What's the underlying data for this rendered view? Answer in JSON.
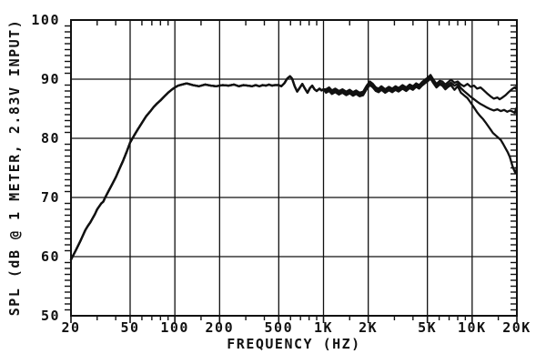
{
  "chart_data": {
    "type": "line",
    "title": "",
    "xlabel": "FREQUENCY (HZ)",
    "ylabel": "SPL (dB @ 1 METER, 2.83V INPUT)",
    "x_scale": "log",
    "x_range_hz": [
      20,
      20000
    ],
    "y_range_db": [
      50,
      100
    ],
    "grid": "major gridlines on both axes, full box frame",
    "legend": "none",
    "background_color": "#ffffff",
    "ink_color": "#111111",
    "x_major_ticks": [
      {
        "hz": 20,
        "label": "20"
      },
      {
        "hz": 50,
        "label": "50"
      },
      {
        "hz": 100,
        "label": "100"
      },
      {
        "hz": 200,
        "label": "200"
      },
      {
        "hz": 500,
        "label": "500"
      },
      {
        "hz": 1000,
        "label": "1K"
      },
      {
        "hz": 2000,
        "label": "2K"
      },
      {
        "hz": 5000,
        "label": "5K"
      },
      {
        "hz": 10000,
        "label": "10K"
      },
      {
        "hz": 20000,
        "label": "20K"
      }
    ],
    "x_minor_ticks_hz": [
      30,
      40,
      60,
      70,
      80,
      90,
      150,
      300,
      400,
      600,
      700,
      800,
      900,
      1500,
      3000,
      4000,
      6000,
      7000,
      8000,
      9000,
      15000
    ],
    "y_major_ticks": [
      {
        "db": 50,
        "label": "50"
      },
      {
        "db": 60,
        "label": "60"
      },
      {
        "db": 70,
        "label": "70"
      },
      {
        "db": 80,
        "label": "80"
      },
      {
        "db": 90,
        "label": "90"
      },
      {
        "db": 100,
        "label": "100"
      }
    ],
    "y_minor_tick_step_db": 1,
    "common_points_hz_db": [
      [
        20,
        59.5
      ],
      [
        21.5,
        61.0
      ],
      [
        23,
        62.5
      ],
      [
        25,
        64.5
      ],
      [
        26,
        65.2
      ],
      [
        27,
        65.8
      ],
      [
        29,
        67.2
      ],
      [
        30,
        68.0
      ],
      [
        32,
        69.0
      ],
      [
        33,
        69.3
      ],
      [
        34,
        70.0
      ],
      [
        36,
        71.2
      ],
      [
        38,
        72.3
      ],
      [
        40,
        73.4
      ],
      [
        42.5,
        74.9
      ],
      [
        45,
        76.3
      ],
      [
        47.5,
        77.8
      ],
      [
        50,
        79.3
      ],
      [
        53,
        80.4
      ],
      [
        56,
        81.4
      ],
      [
        60,
        82.6
      ],
      [
        64,
        83.7
      ],
      [
        68,
        84.5
      ],
      [
        72,
        85.3
      ],
      [
        76,
        85.9
      ],
      [
        80,
        86.4
      ],
      [
        85,
        87.1
      ],
      [
        90,
        87.7
      ],
      [
        95,
        88.2
      ],
      [
        100,
        88.6
      ],
      [
        105,
        88.9
      ],
      [
        112,
        89.1
      ],
      [
        120,
        89.3
      ],
      [
        132,
        89.0
      ],
      [
        145,
        88.8
      ],
      [
        160,
        89.1
      ],
      [
        175,
        88.9
      ],
      [
        190,
        88.8
      ],
      [
        210,
        89.0
      ],
      [
        230,
        88.9
      ],
      [
        250,
        89.1
      ],
      [
        270,
        88.8
      ],
      [
        290,
        89.0
      ],
      [
        310,
        88.9
      ],
      [
        330,
        88.8
      ],
      [
        350,
        89.0
      ],
      [
        370,
        88.8
      ],
      [
        390,
        89.0
      ],
      [
        410,
        88.9
      ],
      [
        430,
        89.1
      ],
      [
        450,
        88.9
      ],
      [
        470,
        89.0
      ],
      [
        500,
        89.0
      ],
      [
        520,
        88.8
      ],
      [
        545,
        89.3
      ],
      [
        570,
        90.1
      ],
      [
        595,
        90.5
      ],
      [
        615,
        90.1
      ],
      [
        640,
        88.8
      ],
      [
        665,
        87.9
      ],
      [
        690,
        88.5
      ],
      [
        720,
        89.2
      ],
      [
        750,
        88.4
      ],
      [
        780,
        87.7
      ],
      [
        810,
        88.5
      ],
      [
        840,
        88.9
      ],
      [
        870,
        88.3
      ],
      [
        900,
        88.0
      ],
      [
        940,
        88.4
      ],
      [
        970,
        88.1
      ],
      [
        1000,
        88.3
      ]
    ],
    "mid_points_hz_db": [
      [
        1040,
        88.0
      ],
      [
        1090,
        88.3
      ],
      [
        1140,
        87.8
      ],
      [
        1200,
        88.1
      ],
      [
        1270,
        87.7
      ],
      [
        1340,
        88.0
      ],
      [
        1420,
        87.6
      ],
      [
        1500,
        87.9
      ],
      [
        1580,
        87.5
      ],
      [
        1660,
        87.8
      ],
      [
        1750,
        87.4
      ],
      [
        1850,
        87.6
      ],
      [
        1950,
        88.6
      ],
      [
        2050,
        89.3
      ],
      [
        2150,
        88.9
      ],
      [
        2250,
        88.3
      ],
      [
        2350,
        88.1
      ],
      [
        2450,
        88.5
      ],
      [
        2600,
        88.0
      ],
      [
        2750,
        88.4
      ],
      [
        2900,
        88.1
      ],
      [
        3050,
        88.5
      ],
      [
        3200,
        88.2
      ],
      [
        3400,
        88.7
      ],
      [
        3600,
        88.3
      ],
      [
        3800,
        88.8
      ],
      [
        4000,
        88.5
      ],
      [
        4200,
        89.0
      ],
      [
        4400,
        88.7
      ],
      [
        4600,
        89.2
      ],
      [
        4800,
        89.6
      ],
      [
        5000,
        89.9
      ],
      [
        5250,
        90.4
      ],
      [
        5500,
        89.6
      ],
      [
        5750,
        88.9
      ],
      [
        6060,
        89.4
      ]
    ],
    "series": [
      {
        "name": "trace-top",
        "mid_offset_db": 0.3,
        "tail_points_hz_db": [
          [
            6300,
            89.6
          ],
          [
            6600,
            89.1
          ],
          [
            6900,
            89.5
          ],
          [
            7200,
            89.9
          ],
          [
            7600,
            89.4
          ],
          [
            8000,
            89.6
          ],
          [
            8400,
            89.1
          ],
          [
            8800,
            88.8
          ],
          [
            9300,
            89.2
          ],
          [
            9800,
            88.7
          ],
          [
            10300,
            88.9
          ],
          [
            10800,
            88.4
          ],
          [
            11400,
            88.6
          ],
          [
            12000,
            88.1
          ],
          [
            12600,
            87.6
          ],
          [
            13300,
            87.1
          ],
          [
            14000,
            86.7
          ],
          [
            14800,
            86.9
          ],
          [
            15300,
            86.6
          ],
          [
            16000,
            86.9
          ],
          [
            16800,
            87.3
          ],
          [
            17600,
            87.8
          ],
          [
            18500,
            88.3
          ],
          [
            19300,
            88.6
          ],
          [
            19700,
            88.4
          ],
          [
            20000,
            89.1
          ]
        ]
      },
      {
        "name": "trace-middle",
        "mid_offset_db": 0.0,
        "tail_points_hz_db": [
          [
            6300,
            89.2
          ],
          [
            6600,
            88.7
          ],
          [
            6900,
            89.1
          ],
          [
            7200,
            89.4
          ],
          [
            7600,
            88.9
          ],
          [
            8000,
            89.2
          ],
          [
            8400,
            88.5
          ],
          [
            8800,
            88.0
          ],
          [
            9300,
            87.5
          ],
          [
            9800,
            87.0
          ],
          [
            10300,
            86.6
          ],
          [
            10800,
            86.2
          ],
          [
            11400,
            85.8
          ],
          [
            12000,
            85.5
          ],
          [
            12600,
            85.2
          ],
          [
            13300,
            84.9
          ],
          [
            14000,
            84.7
          ],
          [
            14800,
            84.9
          ],
          [
            15600,
            84.6
          ],
          [
            16400,
            84.8
          ],
          [
            17200,
            84.5
          ],
          [
            18000,
            84.7
          ],
          [
            18800,
            84.5
          ],
          [
            19400,
            84.3
          ],
          [
            19700,
            84.9
          ],
          [
            20000,
            85.2
          ]
        ]
      },
      {
        "name": "trace-bottom",
        "mid_offset_db": -0.3,
        "tail_points_hz_db": [
          [
            6300,
            88.9
          ],
          [
            6600,
            88.3
          ],
          [
            6900,
            88.7
          ],
          [
            7200,
            89.0
          ],
          [
            7600,
            88.2
          ],
          [
            8000,
            88.8
          ],
          [
            8400,
            87.7
          ],
          [
            8800,
            87.3
          ],
          [
            9300,
            86.8
          ],
          [
            9800,
            86.0
          ],
          [
            10300,
            85.2
          ],
          [
            10800,
            84.4
          ],
          [
            11300,
            83.8
          ],
          [
            11800,
            83.3
          ],
          [
            12300,
            82.7
          ],
          [
            12800,
            82.1
          ],
          [
            13300,
            81.5
          ],
          [
            13800,
            80.9
          ],
          [
            14400,
            80.5
          ],
          [
            15000,
            80.1
          ],
          [
            15600,
            79.7
          ],
          [
            16200,
            79.0
          ],
          [
            16800,
            78.3
          ],
          [
            17400,
            77.6
          ],
          [
            17900,
            76.9
          ],
          [
            18300,
            76.1
          ],
          [
            18700,
            75.3
          ],
          [
            19100,
            74.7
          ],
          [
            19500,
            74.2
          ],
          [
            19800,
            74.5
          ],
          [
            20000,
            75.2
          ]
        ]
      }
    ]
  }
}
